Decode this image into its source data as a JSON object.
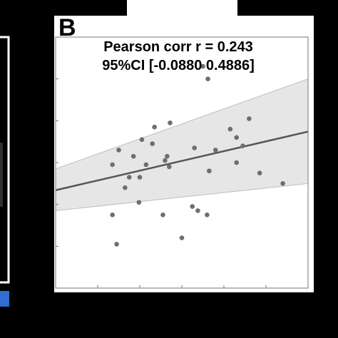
{
  "panel_label": "B",
  "chart_data": {
    "type": "scatter",
    "title": "",
    "xlabel": "",
    "ylabel": "",
    "xlim": [
      0,
      6
    ],
    "ylim": [
      0,
      6
    ],
    "grid": false,
    "annotations": {
      "line1": "Pearson corr r = 0.243",
      "line2": "95%CI [-0.0880 0.4886]"
    },
    "colors": {
      "points": "#6e6e6e",
      "fit_line": "#555555",
      "ci_band": "#e6e6e6",
      "ci_edge": "#bdbdbd",
      "background": "#000000",
      "axes_bg": "#ffffff"
    },
    "fit": {
      "x": [
        0,
        6
      ],
      "y": [
        2.34,
        3.74
      ]
    },
    "ci_band": {
      "upper": [
        2.85,
        5.0
      ],
      "lower": [
        1.85,
        2.5
      ]
    },
    "points": [
      {
        "x": 1.5,
        "y": 3.3
      },
      {
        "x": 1.85,
        "y": 3.15
      },
      {
        "x": 1.35,
        "y": 2.95
      },
      {
        "x": 1.75,
        "y": 2.65
      },
      {
        "x": 2.05,
        "y": 3.55
      },
      {
        "x": 2.35,
        "y": 3.85
      },
      {
        "x": 2.3,
        "y": 3.45
      },
      {
        "x": 2.72,
        "y": 3.95
      },
      {
        "x": 2.0,
        "y": 2.65
      },
      {
        "x": 2.15,
        "y": 2.95
      },
      {
        "x": 1.65,
        "y": 2.4
      },
      {
        "x": 1.98,
        "y": 2.05
      },
      {
        "x": 2.7,
        "y": 2.9
      },
      {
        "x": 2.6,
        "y": 3.05
      },
      {
        "x": 2.65,
        "y": 3.15
      },
      {
        "x": 3.5,
        "y": 5.3
      },
      {
        "x": 3.62,
        "y": 5.0
      },
      {
        "x": 3.3,
        "y": 3.35
      },
      {
        "x": 3.65,
        "y": 2.8
      },
      {
        "x": 3.8,
        "y": 3.3
      },
      {
        "x": 4.15,
        "y": 3.8
      },
      {
        "x": 4.3,
        "y": 3.6
      },
      {
        "x": 4.45,
        "y": 3.4
      },
      {
        "x": 4.6,
        "y": 4.05
      },
      {
        "x": 4.3,
        "y": 3.0
      },
      {
        "x": 4.85,
        "y": 2.75
      },
      {
        "x": 5.4,
        "y": 2.5
      },
      {
        "x": 1.35,
        "y": 1.75
      },
      {
        "x": 2.55,
        "y": 1.75
      },
      {
        "x": 3.25,
        "y": 1.95
      },
      {
        "x": 3.38,
        "y": 1.85
      },
      {
        "x": 3.6,
        "y": 1.75
      },
      {
        "x": 1.45,
        "y": 1.05
      },
      {
        "x": 3.0,
        "y": 1.2
      }
    ]
  }
}
